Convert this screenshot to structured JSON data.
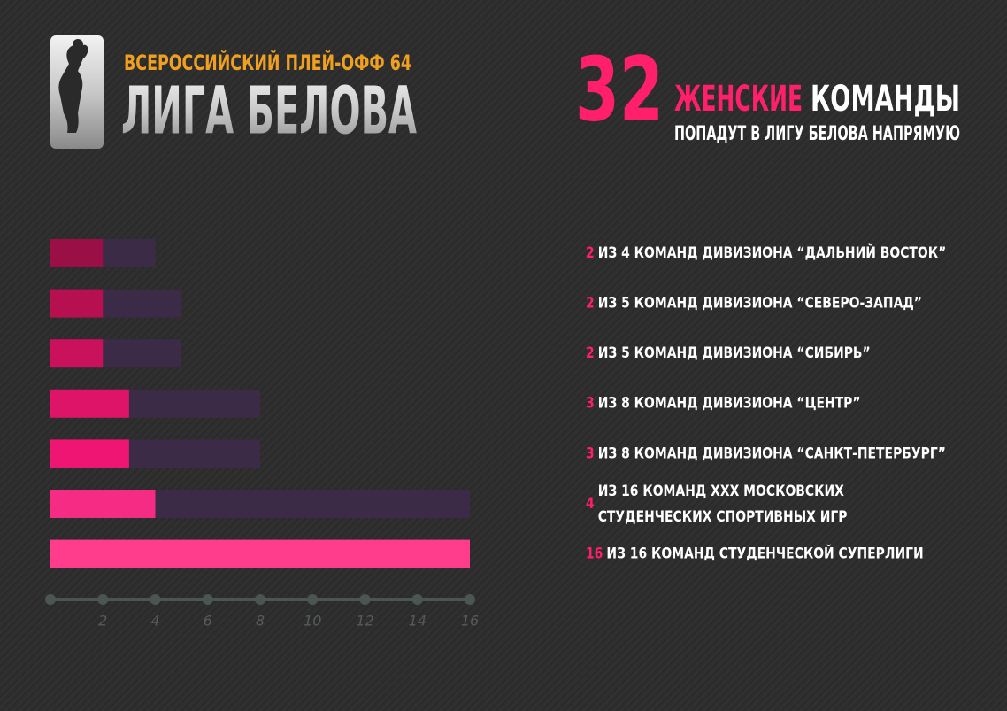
{
  "header": {
    "subtitle": "ВСЕРОССИЙСКИЙ ПЛЕЙ-ОФФ 64",
    "title": "ЛИГА БЕЛОВА"
  },
  "headline": {
    "number": "32",
    "highlight": "ЖЕНСКИЕ",
    "word": "КОМАНДЫ",
    "subline": "ПОПАДУТ В ЛИГУ БЕЛОВА НАПРЯМУЮ"
  },
  "chart_data": {
    "type": "bar",
    "orientation": "horizontal",
    "categories": [
      "ИЗ 4 КОМАНД ДИВИЗИОНА “ДАЛЬНИЙ ВОСТОК”",
      "ИЗ 5 КОМАНД ДИВИЗИОНА “СЕВЕРО-ЗАПАД”",
      "ИЗ 5 КОМАНД ДИВИЗИОНА “СИБИРЬ”",
      "ИЗ 8 КОМАНД ДИВИЗИОНА “ЦЕНТР”",
      "ИЗ 8 КОМАНД ДИВИЗИОНА “САНКТ-ПЕТЕРБУРГ”",
      [
        "ИЗ 16 КОМАНД  XXX МОСКОВСКИХ",
        "СТУДЕНЧЕСКИХ СПОРТИВНЫХ ИГР"
      ],
      "ИЗ 16 КОМАНД СТУДЕНЧЕСКОЙ СУПЕРЛИГИ"
    ],
    "series": [
      {
        "values": [
          4,
          5,
          5,
          8,
          8,
          16,
          16
        ],
        "color": "#3b2b46"
      },
      {
        "values": [
          2,
          2,
          2,
          3,
          3,
          4,
          16
        ],
        "colors": [
          "#9a0f45",
          "#b61050",
          "#c9125b",
          "#dd1468",
          "#ee1573",
          "#f62c84",
          "#ff3d8c"
        ]
      }
    ],
    "xlim": [
      0,
      16
    ],
    "xticks": [
      2,
      4,
      6,
      8,
      10,
      12,
      14,
      16
    ]
  }
}
